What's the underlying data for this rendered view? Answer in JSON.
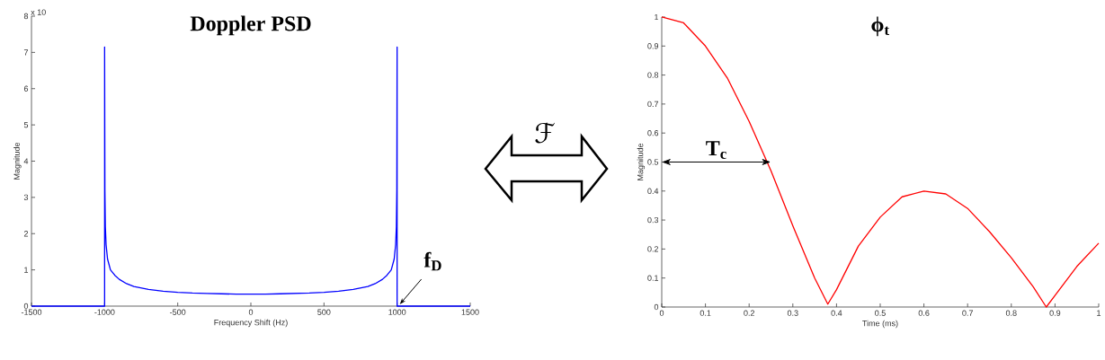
{
  "chart_data": [
    {
      "type": "line",
      "title": "Doppler PSD",
      "xlabel": "Frequency Shift (Hz)",
      "ylabel": "Magnitude",
      "color": "#0000ff",
      "x": [
        -1500,
        -1000,
        -1000,
        -998,
        -995,
        -990,
        -980,
        -960,
        -930,
        -900,
        -850,
        -800,
        -700,
        -600,
        -500,
        -400,
        -300,
        -200,
        -100,
        0,
        100,
        200,
        300,
        400,
        500,
        600,
        700,
        800,
        850,
        900,
        930,
        960,
        980,
        990,
        995,
        998,
        1000,
        1000,
        1500
      ],
      "values": [
        0,
        0,
        7.15,
        3.2,
        2.2,
        1.7,
        1.3,
        1.0,
        0.85,
        0.74,
        0.62,
        0.54,
        0.46,
        0.41,
        0.38,
        0.36,
        0.35,
        0.34,
        0.33,
        0.33,
        0.33,
        0.34,
        0.35,
        0.36,
        0.38,
        0.41,
        0.46,
        0.54,
        0.62,
        0.74,
        0.85,
        1.0,
        1.3,
        1.7,
        2.2,
        3.2,
        7.15,
        0,
        0
      ],
      "xlim": [
        -1500,
        1500
      ],
      "ylim": [
        0,
        8
      ],
      "xticks": [
        -1500,
        -1000,
        -500,
        0,
        500,
        1000,
        1500
      ],
      "yticks": [
        0,
        1,
        2,
        3,
        4,
        5,
        6,
        7,
        8
      ],
      "annotations": [
        "x 10",
        {
          "text": "f$_{D}$",
          "x": 1000,
          "y": 0
        }
      ]
    },
    {
      "type": "line",
      "title": "ϕ$_{t}$",
      "xlabel": "Time (ms)",
      "ylabel": "Magnitude",
      "color": "#ff0000",
      "x": [
        0,
        0.05,
        0.1,
        0.15,
        0.2,
        0.25,
        0.3,
        0.35,
        0.38,
        0.4,
        0.45,
        0.5,
        0.55,
        0.6,
        0.65,
        0.7,
        0.75,
        0.8,
        0.85,
        0.88,
        0.9,
        0.95,
        1.0
      ],
      "values": [
        1,
        0.98,
        0.9,
        0.79,
        0.64,
        0.47,
        0.28,
        0.1,
        0.01,
        0.06,
        0.21,
        0.31,
        0.38,
        0.4,
        0.39,
        0.34,
        0.26,
        0.17,
        0.07,
        0.0,
        0.04,
        0.14,
        0.22
      ],
      "xlim": [
        0,
        1
      ],
      "ylim": [
        0,
        1
      ],
      "xticks": [
        0,
        0.1,
        0.2,
        0.3,
        0.4,
        0.5,
        0.6,
        0.7,
        0.8,
        0.9,
        1
      ],
      "yticks": [
        0,
        0.1,
        0.2,
        0.3,
        0.4,
        0.5,
        0.6,
        0.7,
        0.8,
        0.9,
        1
      ],
      "annotations": [
        "ℱ",
        {
          "text": "T$_{c}$",
          "x": 0.25,
          "y": 0.5
        }
      ]
    }
  ]
}
